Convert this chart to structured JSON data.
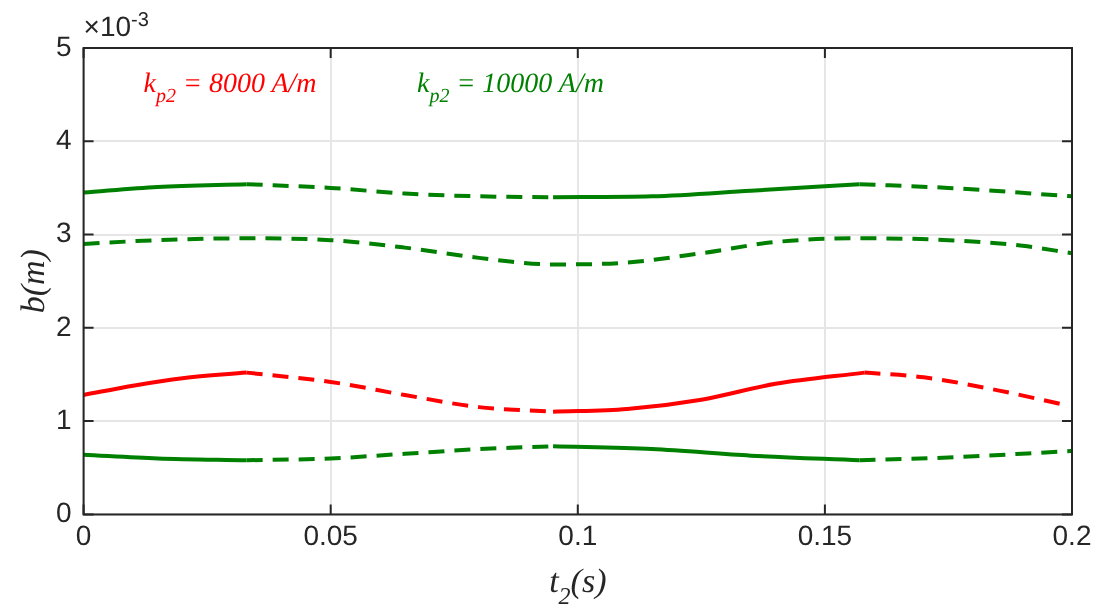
{
  "chart_data": {
    "type": "line",
    "xlabel": "t$_{2}$(s)",
    "ylabel": "b(m)",
    "annotations": [
      "×10$^{-3}$"
    ],
    "xlim": [
      0,
      0.2
    ],
    "xticks": [
      0,
      0.05,
      0.1,
      0.15,
      0.2
    ],
    "ylim": [
      0,
      5
    ],
    "yticks": [
      0,
      1,
      2,
      3,
      4,
      5
    ],
    "grid": true,
    "marker": "none",
    "series": [
      {
        "name": "k$_{p2}$ = 8000 A/m",
        "color": "#ff0000",
        "line_style": "solid",
        "x": [
          0,
          0.01,
          0.02,
          0.033
        ],
        "values": [
          1.28,
          1.38,
          1.46,
          1.52
        ]
      },
      {
        "color": "#ff0000",
        "line_style": "dashed",
        "x": [
          0.033,
          0.05,
          0.065,
          0.08,
          0.095
        ],
        "values": [
          1.52,
          1.42,
          1.28,
          1.15,
          1.1
        ]
      },
      {
        "color": "#ff0000",
        "line_style": "solid",
        "x": [
          0.095,
          0.11,
          0.125,
          0.14,
          0.158
        ],
        "values": [
          1.1,
          1.13,
          1.23,
          1.4,
          1.52
        ]
      },
      {
        "color": "#ff0000",
        "line_style": "dashed",
        "x": [
          0.158,
          0.17,
          0.185,
          0.198
        ],
        "values": [
          1.52,
          1.47,
          1.33,
          1.18
        ]
      },
      {
        "name": "k$_{p2}$ = 10000 A/m",
        "color": "#008000",
        "line_style": "solid",
        "x": [
          0,
          0.015,
          0.033
        ],
        "values": [
          3.45,
          3.51,
          3.54
        ]
      },
      {
        "color": "#008000",
        "line_style": "dashed",
        "x": [
          0.033,
          0.05,
          0.065,
          0.08,
          0.095
        ],
        "values": [
          3.54,
          3.5,
          3.44,
          3.41,
          3.4
        ]
      },
      {
        "color": "#008000",
        "line_style": "solid",
        "x": [
          0.095,
          0.115,
          0.135,
          0.157
        ],
        "values": [
          3.4,
          3.41,
          3.47,
          3.54
        ]
      },
      {
        "color": "#008000",
        "line_style": "dashed",
        "x": [
          0.157,
          0.175,
          0.2
        ],
        "values": [
          3.54,
          3.5,
          3.41
        ]
      },
      {
        "color": "#008000",
        "line_style": "dashed",
        "x": [
          0,
          0.015,
          0.033,
          0.05,
          0.065,
          0.08,
          0.095,
          0.11,
          0.125,
          0.14,
          0.157,
          0.175,
          0.19,
          0.2
        ],
        "values": [
          2.9,
          2.94,
          2.96,
          2.94,
          2.86,
          2.75,
          2.68,
          2.7,
          2.8,
          2.92,
          2.96,
          2.94,
          2.88,
          2.8
        ]
      },
      {
        "color": "#008000",
        "line_style": "solid",
        "x": [
          0,
          0.015,
          0.033
        ],
        "values": [
          0.64,
          0.6,
          0.58
        ]
      },
      {
        "color": "#008000",
        "line_style": "dashed",
        "x": [
          0.033,
          0.05,
          0.065,
          0.08,
          0.095
        ],
        "values": [
          0.58,
          0.6,
          0.65,
          0.7,
          0.73
        ]
      },
      {
        "color": "#008000",
        "line_style": "solid",
        "x": [
          0.095,
          0.115,
          0.135,
          0.157
        ],
        "values": [
          0.73,
          0.7,
          0.63,
          0.58
        ]
      },
      {
        "color": "#008000",
        "line_style": "dashed",
        "x": [
          0.157,
          0.175,
          0.2
        ],
        "values": [
          0.58,
          0.61,
          0.68
        ]
      }
    ]
  }
}
